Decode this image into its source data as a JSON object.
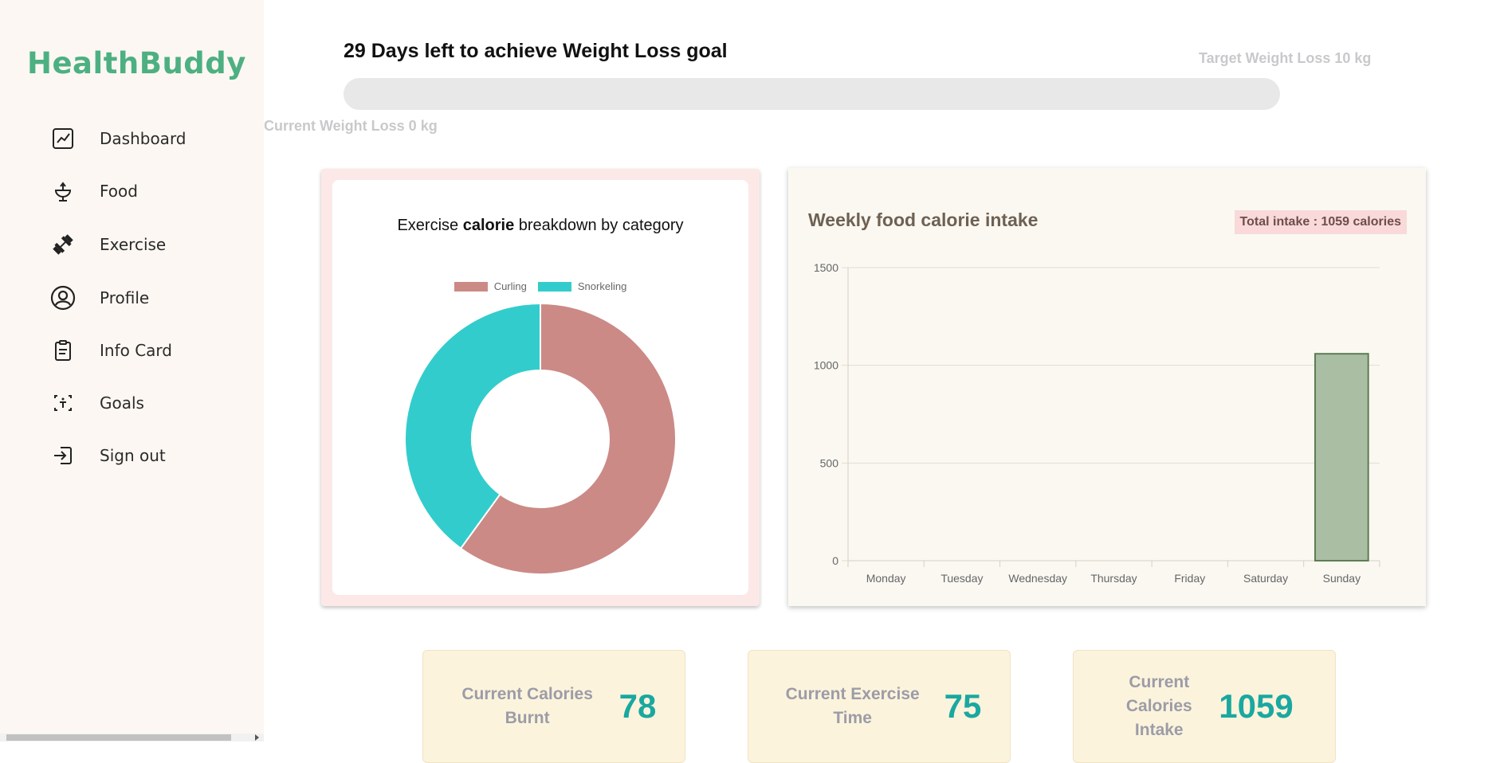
{
  "app": {
    "title": "HealthBuddy"
  },
  "sidebar": {
    "items": [
      {
        "label": "Dashboard",
        "icon": "chart-line-icon"
      },
      {
        "label": "Food",
        "icon": "food-bowl-icon"
      },
      {
        "label": "Exercise",
        "icon": "dumbbell-icon"
      },
      {
        "label": "Profile",
        "icon": "user-circle-icon"
      },
      {
        "label": "Info Card",
        "icon": "clipboard-icon"
      },
      {
        "label": "Goals",
        "icon": "target-icon"
      },
      {
        "label": "Sign out",
        "icon": "sign-out-icon"
      }
    ]
  },
  "goal": {
    "title": "29 Days left to achieve Weight Loss goal",
    "target_label": "Target Weight Loss 10 kg",
    "current_label": "Current Weight Loss 0 kg",
    "progress_percent": 0
  },
  "pie_chart": {
    "title_pre": "Exercise ",
    "title_bold": "calorie",
    "title_post": " breakdown by category"
  },
  "bar_chart": {
    "title": "Weekly food calorie intake",
    "badge": "Total intake : 1059 calories"
  },
  "stats": [
    {
      "label": "Current Calories Burnt",
      "value": "78"
    },
    {
      "label": "Current Exercise Time",
      "value": "75"
    },
    {
      "label": "Current Calories Intake",
      "value": "1059"
    }
  ],
  "colors": {
    "brand": "#4db082",
    "curling": "#cb8a86",
    "snorkeling": "#33cccc",
    "bar_fill": "#a9bea2",
    "bar_border": "#5e7d54",
    "stat_value": "#1aa8a0"
  },
  "chart_data": [
    {
      "type": "pie",
      "title": "Exercise calorie breakdown by category",
      "labels": [
        "Curling",
        "Snorkeling"
      ],
      "values": [
        60,
        40
      ],
      "colors": [
        "#cb8a86",
        "#33cccc"
      ],
      "donut": true,
      "legend": "top"
    },
    {
      "type": "bar",
      "title": "Weekly food calorie intake",
      "categories": [
        "Monday",
        "Tuesday",
        "Wednesday",
        "Thursday",
        "Friday",
        "Saturday",
        "Sunday"
      ],
      "values": [
        0,
        0,
        0,
        0,
        0,
        0,
        1059
      ],
      "yticks": [
        0,
        500,
        1000,
        1500
      ],
      "ylim": [
        0,
        1500
      ],
      "grid": true
    }
  ]
}
